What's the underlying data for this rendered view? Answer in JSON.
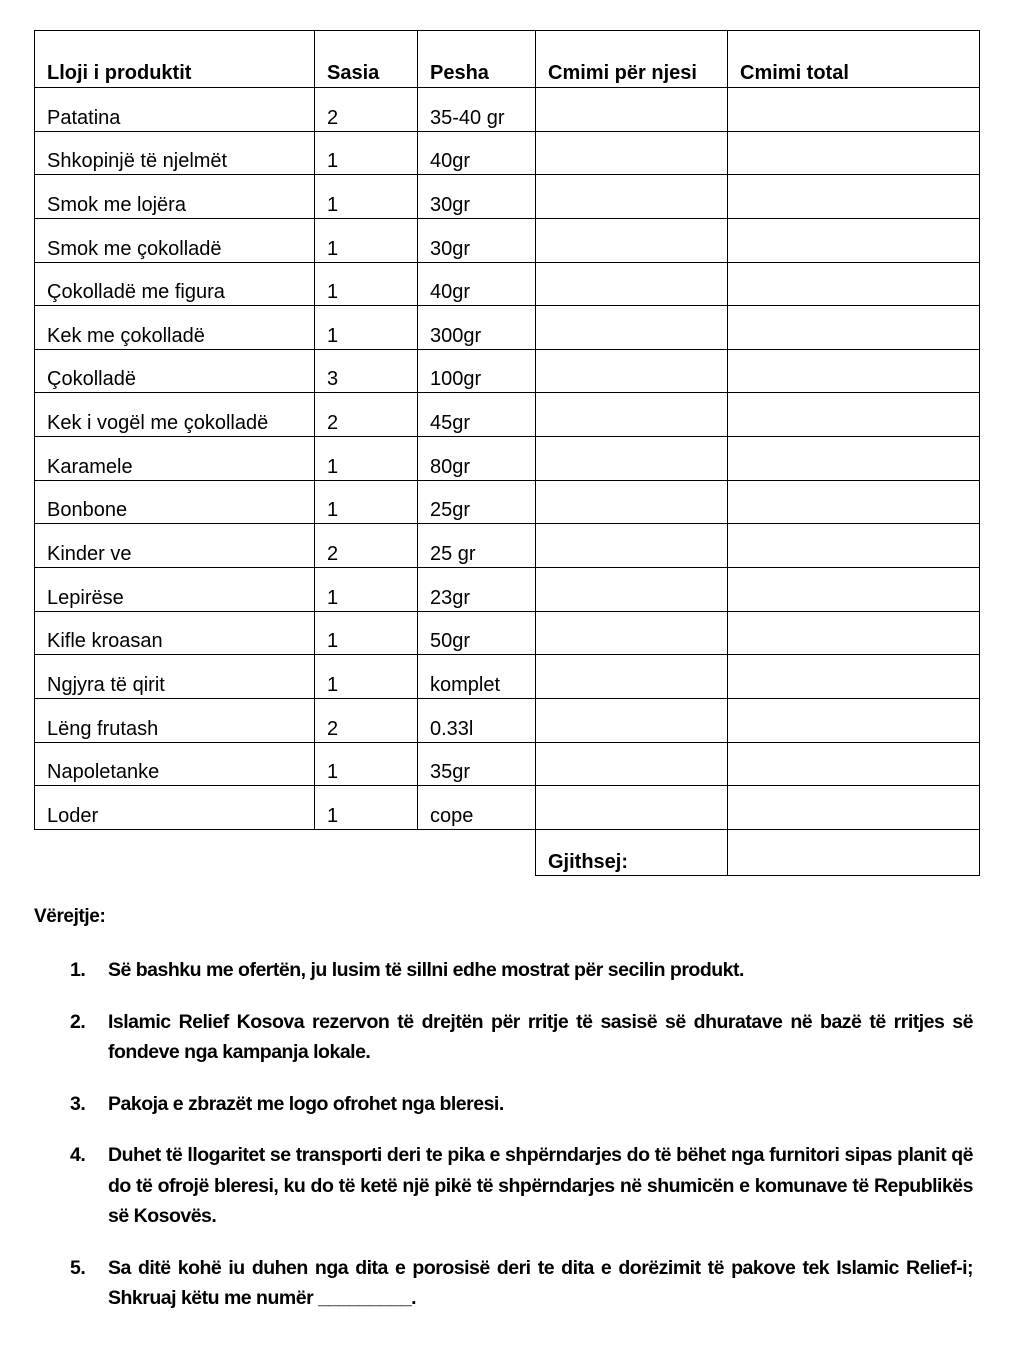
{
  "table": {
    "headers": [
      "Lloji i produktit",
      "Sasia",
      "Pesha",
      "Cmimi për njesi",
      "Cmimi total"
    ],
    "rows": [
      [
        "Patatina",
        "2",
        "35-40 gr"
      ],
      [
        "Shkopinjë të njelmët",
        "1",
        "40gr"
      ],
      [
        "Smok me lojëra",
        "1",
        "30gr"
      ],
      [
        "Smok me çokolladë",
        "1",
        "30gr"
      ],
      [
        "Çokolladë me figura",
        "1",
        "40gr"
      ],
      [
        "Kek me çokolladë",
        "1",
        "300gr"
      ],
      [
        "Çokolladë",
        "3",
        "100gr"
      ],
      [
        "Kek i vogël me çokolladë",
        "2",
        "45gr"
      ],
      [
        "Karamele",
        "1",
        "80gr"
      ],
      [
        "Bonbone",
        "1",
        "25gr"
      ],
      [
        "Kinder ve",
        "2",
        "25 gr"
      ],
      [
        "Lepirëse",
        "1",
        "23gr"
      ],
      [
        "Kifle kroasan",
        "1",
        "50gr"
      ],
      [
        "Ngjyra të qirit",
        "1",
        "komplet"
      ],
      [
        "Lëng frutash",
        "2",
        "0.33l"
      ],
      [
        "Napoletanke",
        "1",
        "35gr"
      ],
      [
        "Loder",
        "1",
        "cope"
      ]
    ],
    "total_label": "Gjithsej:"
  },
  "notes": {
    "title": "Vërejtje:",
    "items": [
      {
        "num": "1.",
        "text": "Së bashku me ofertën, ju lusim të sillni edhe mostrat për secilin produkt."
      },
      {
        "num": "2.",
        "text": "Islamic Relief Kosova rezervon të drejtën për rritje të sasisë së dhuratave në bazë të rritjes së fondeve nga kampanja lokale."
      },
      {
        "num": "3.",
        "text": "Pakoja e zbrazët me logo ofrohet nga bleresi."
      },
      {
        "num": "4.",
        "text": "Duhet të llogaritet se transporti deri te pika e shpërndarjes do të bëhet nga furnitori sipas planit që do të ofrojë bleresi, ku do të ketë një pikë të shpërndarjes në shumicën e komunave të Republikës së Kosovës."
      },
      {
        "num": "5.",
        "text": "Sa ditë kohë iu duhen nga dita e porosisë deri te dita e dorëzimit të pakove tek Islamic Relief-i; Shkruaj këtu me numër _________."
      }
    ]
  }
}
